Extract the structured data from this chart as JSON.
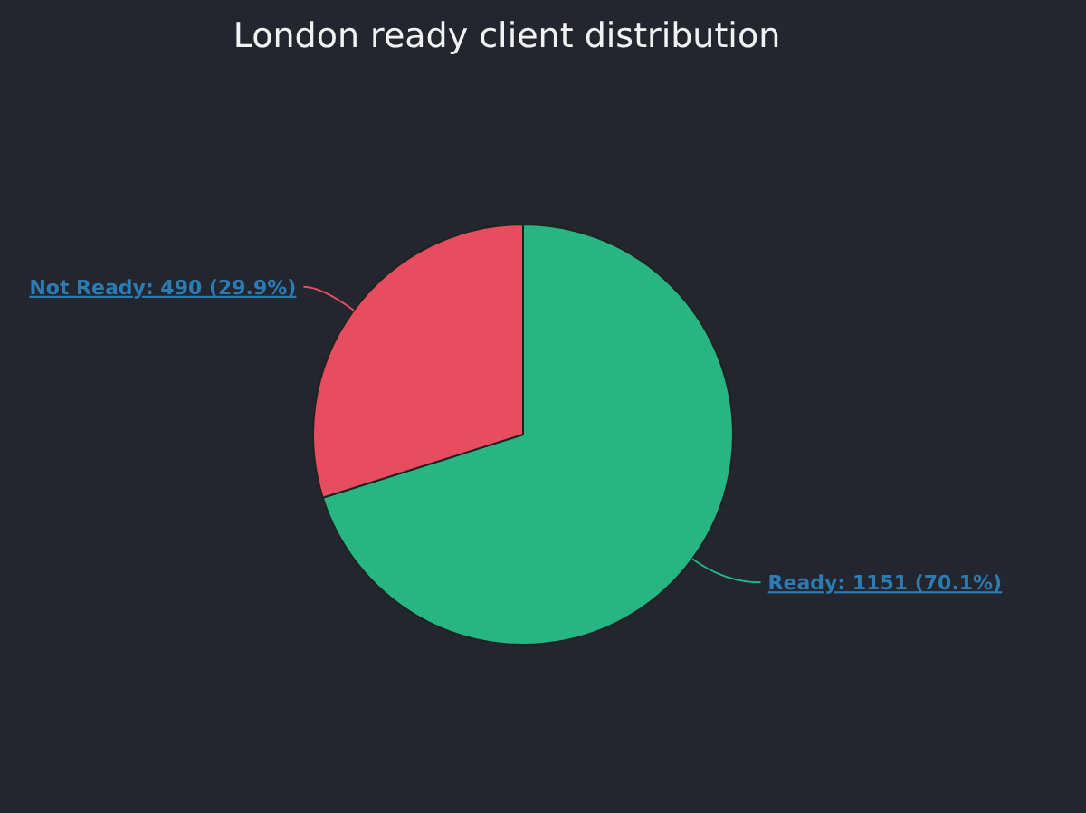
{
  "chart_data": {
    "type": "pie",
    "title": "London ready client distribution",
    "categories": [
      "Ready",
      "Not Ready"
    ],
    "values": [
      1151,
      490
    ],
    "colors": [
      "#27b583",
      "#e84c5f"
    ],
    "value_labels": [
      "1151 (70.1%)",
      "490 (29.9%)"
    ]
  }
}
